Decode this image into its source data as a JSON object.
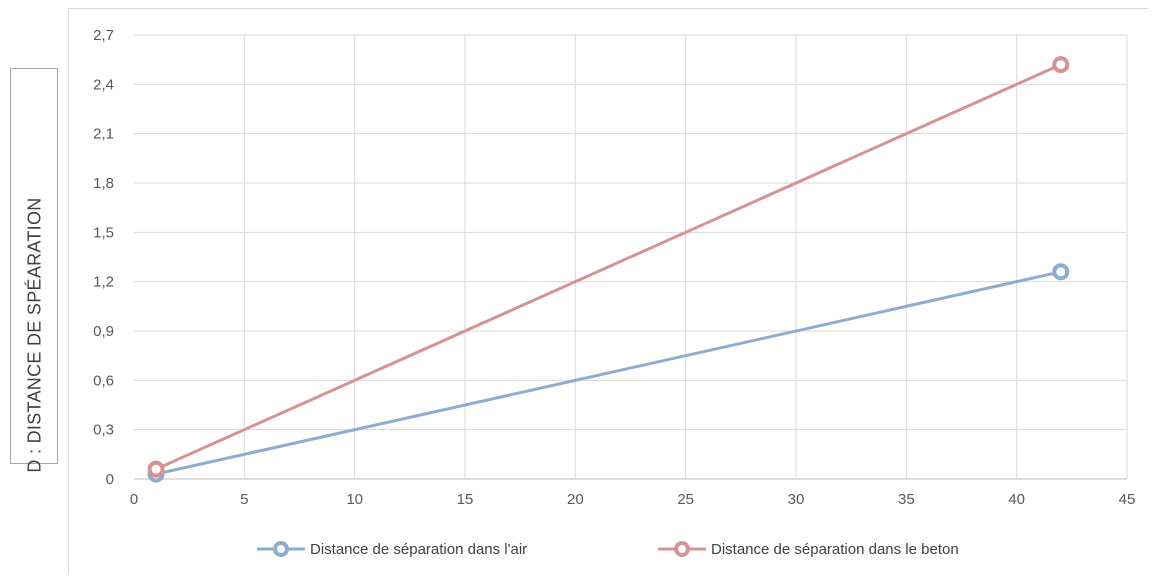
{
  "chart_data": {
    "type": "line",
    "title": "",
    "xlabel": "",
    "ylabel": "D : DISTANCE DE SPÉARATION",
    "xlim": [
      0,
      45
    ],
    "ylim": [
      0,
      2.7
    ],
    "x_ticks": [
      "0",
      "5",
      "10",
      "15",
      "20",
      "25",
      "30",
      "35",
      "40",
      "45"
    ],
    "y_ticks": [
      "0",
      "0,3",
      "0,6",
      "0,9",
      "1,2",
      "1,5",
      "1,8",
      "2,1",
      "2,4",
      "2,7"
    ],
    "grid": true,
    "legend_position": "bottom",
    "series": [
      {
        "name": "Distance de séparation dans l'air",
        "color": "#8eabd1",
        "marker": "circle",
        "x": [
          1,
          42
        ],
        "y": [
          0.03,
          1.26
        ]
      },
      {
        "name": "Distance de séparation dans le beton",
        "color": "#d59493",
        "marker": "circle",
        "x": [
          1,
          42
        ],
        "y": [
          0.06,
          2.52
        ]
      }
    ]
  }
}
